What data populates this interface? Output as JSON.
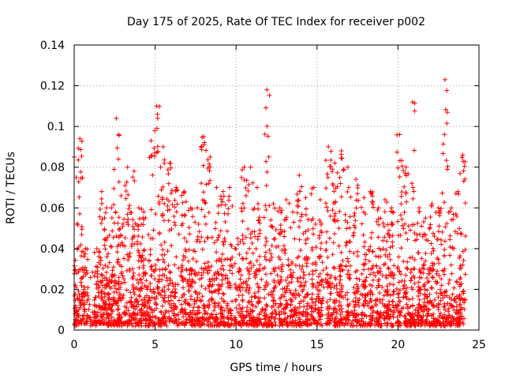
{
  "chart_data": {
    "type": "scatter",
    "title": "Day 175 of 2025, Rate Of TEC Index for receiver p002",
    "xlabel": "GPS time / hours",
    "ylabel": "ROTI / TECUs",
    "xlim": [
      0,
      25
    ],
    "ylim": [
      0,
      0.14
    ],
    "x_ticks": [
      "0",
      "5",
      "10",
      "15",
      "20",
      "25"
    ],
    "y_ticks": [
      "0",
      "0.02",
      "0.04",
      "0.06",
      "0.08",
      "0.1",
      "0.12",
      "0.14"
    ],
    "grid": true,
    "marker": "plus",
    "color": "#ff0000",
    "peaks": [
      {
        "x": 0.0,
        "y": 0.085
      },
      {
        "x": 0.35,
        "y": 0.094
      },
      {
        "x": 0.7,
        "y": 0.04
      },
      {
        "x": 1.4,
        "y": 0.04
      },
      {
        "x": 1.7,
        "y": 0.068
      },
      {
        "x": 2.0,
        "y": 0.06
      },
      {
        "x": 2.3,
        "y": 0.06
      },
      {
        "x": 2.6,
        "y": 0.104
      },
      {
        "x": 2.9,
        "y": 0.066
      },
      {
        "x": 3.3,
        "y": 0.08
      },
      {
        "x": 3.7,
        "y": 0.078
      },
      {
        "x": 4.0,
        "y": 0.06
      },
      {
        "x": 4.3,
        "y": 0.058
      },
      {
        "x": 4.75,
        "y": 0.093
      },
      {
        "x": 5.1,
        "y": 0.11
      },
      {
        "x": 5.5,
        "y": 0.09
      },
      {
        "x": 5.9,
        "y": 0.082
      },
      {
        "x": 6.3,
        "y": 0.07
      },
      {
        "x": 6.8,
        "y": 0.068
      },
      {
        "x": 7.2,
        "y": 0.06
      },
      {
        "x": 7.6,
        "y": 0.06
      },
      {
        "x": 8.0,
        "y": 0.095
      },
      {
        "x": 8.4,
        "y": 0.085
      },
      {
        "x": 8.8,
        "y": 0.07
      },
      {
        "x": 9.2,
        "y": 0.068
      },
      {
        "x": 9.6,
        "y": 0.07
      },
      {
        "x": 10.1,
        "y": 0.045
      },
      {
        "x": 10.5,
        "y": 0.08
      },
      {
        "x": 10.9,
        "y": 0.08
      },
      {
        "x": 11.3,
        "y": 0.07
      },
      {
        "x": 11.9,
        "y": 0.118
      },
      {
        "x": 12.3,
        "y": 0.062
      },
      {
        "x": 12.7,
        "y": 0.06
      },
      {
        "x": 13.1,
        "y": 0.064
      },
      {
        "x": 13.5,
        "y": 0.058
      },
      {
        "x": 13.9,
        "y": 0.076
      },
      {
        "x": 14.3,
        "y": 0.065
      },
      {
        "x": 14.8,
        "y": 0.07
      },
      {
        "x": 15.2,
        "y": 0.064
      },
      {
        "x": 15.7,
        "y": 0.09
      },
      {
        "x": 16.1,
        "y": 0.082
      },
      {
        "x": 16.5,
        "y": 0.088
      },
      {
        "x": 16.9,
        "y": 0.08
      },
      {
        "x": 17.4,
        "y": 0.074
      },
      {
        "x": 17.9,
        "y": 0.065
      },
      {
        "x": 18.3,
        "y": 0.068
      },
      {
        "x": 18.8,
        "y": 0.06
      },
      {
        "x": 19.2,
        "y": 0.064
      },
      {
        "x": 19.6,
        "y": 0.06
      },
      {
        "x": 20.1,
        "y": 0.096
      },
      {
        "x": 20.5,
        "y": 0.08
      },
      {
        "x": 20.9,
        "y": 0.112
      },
      {
        "x": 21.3,
        "y": 0.06
      },
      {
        "x": 21.7,
        "y": 0.055
      },
      {
        "x": 22.1,
        "y": 0.062
      },
      {
        "x": 22.5,
        "y": 0.06
      },
      {
        "x": 22.9,
        "y": 0.123
      },
      {
        "x": 23.3,
        "y": 0.06
      },
      {
        "x": 23.7,
        "y": 0.068
      },
      {
        "x": 24.0,
        "y": 0.086
      }
    ]
  }
}
